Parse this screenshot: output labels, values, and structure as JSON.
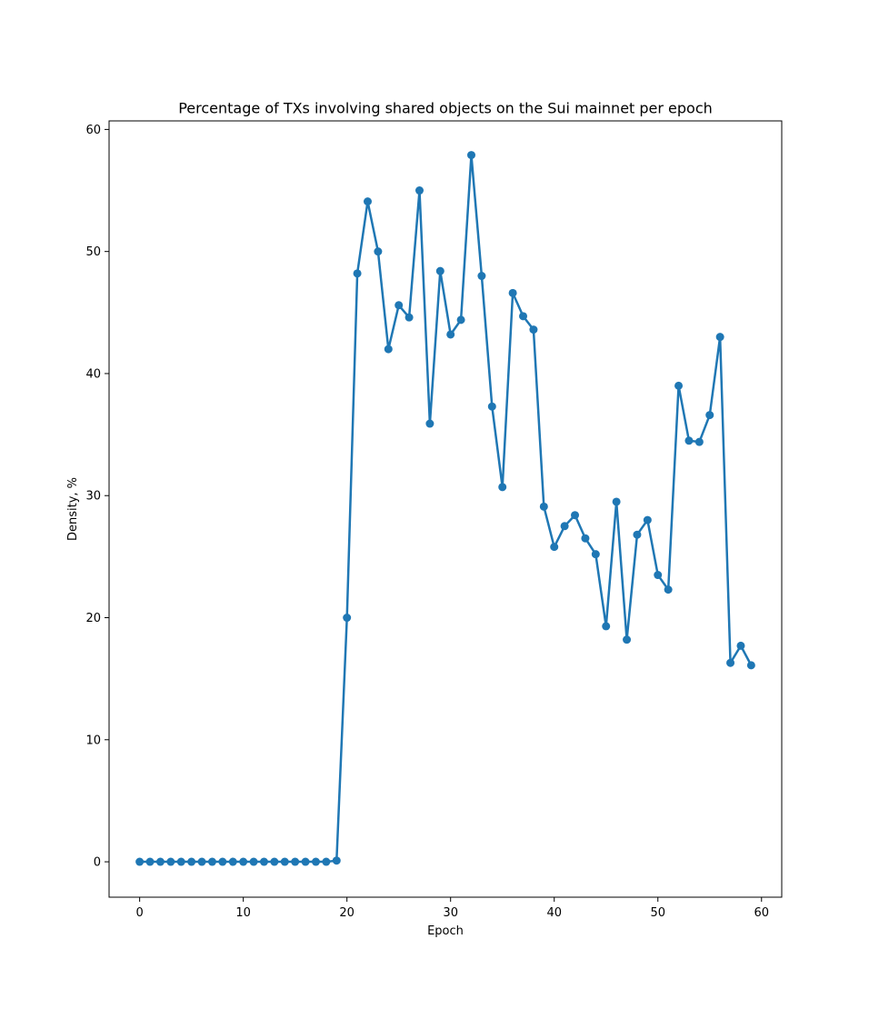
{
  "chart_data": {
    "type": "line",
    "title": "Percentage of TXs involving shared objects on the Sui mainnet per epoch",
    "xlabel": "Epoch",
    "ylabel": "Density, %",
    "xlim": [
      -2.95,
      61.95
    ],
    "ylim": [
      -2.9,
      60.7
    ],
    "xticks": [
      0,
      10,
      20,
      30,
      40,
      50,
      60
    ],
    "yticks": [
      0,
      10,
      20,
      30,
      40,
      50,
      60
    ],
    "grid": false,
    "series_color": "#1f77b4",
    "marker": "circle",
    "x": [
      0,
      1,
      2,
      3,
      4,
      5,
      6,
      7,
      8,
      9,
      10,
      11,
      12,
      13,
      14,
      15,
      16,
      17,
      18,
      19,
      20,
      21,
      22,
      23,
      24,
      25,
      26,
      27,
      28,
      29,
      30,
      31,
      32,
      33,
      34,
      35,
      36,
      37,
      38,
      39,
      40,
      41,
      42,
      43,
      44,
      45,
      46,
      47,
      48,
      49,
      50,
      51,
      52,
      53,
      54,
      55,
      56,
      57,
      58,
      59
    ],
    "y": [
      0,
      0,
      0,
      0,
      0,
      0,
      0,
      0,
      0,
      0,
      0,
      0,
      0,
      0,
      0,
      0,
      0,
      0,
      0,
      0.1,
      20.0,
      48.2,
      54.1,
      50.0,
      42.0,
      45.6,
      44.6,
      55.0,
      35.9,
      48.4,
      43.2,
      44.4,
      57.9,
      48.0,
      37.3,
      30.7,
      46.6,
      44.7,
      43.6,
      29.1,
      25.8,
      27.5,
      28.4,
      26.5,
      25.2,
      19.3,
      29.5,
      18.2,
      26.8,
      28.0,
      23.5,
      22.3,
      39.0,
      34.5,
      34.4,
      36.6,
      43.0,
      16.3,
      17.7,
      16.1
    ]
  }
}
